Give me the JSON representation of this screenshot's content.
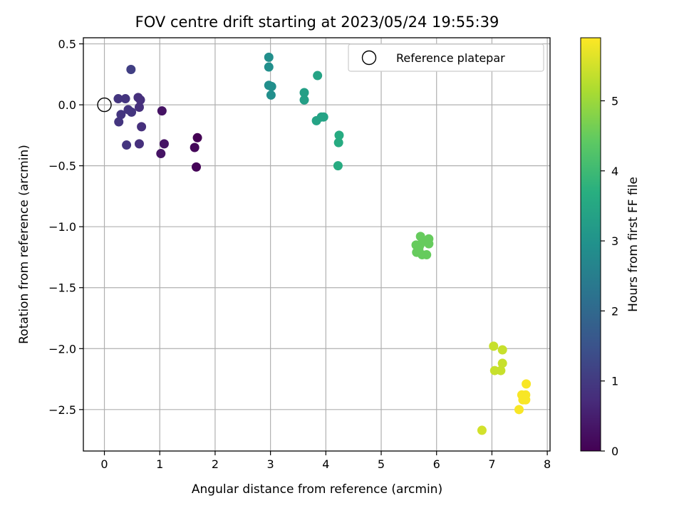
{
  "chart_data": {
    "type": "scatter",
    "title": "FOV centre drift starting at 2023/05/24 19:55:39",
    "xlabel": "Angular distance from reference (arcmin)",
    "ylabel": "Rotation from reference (arcmin)",
    "xlim": [
      -0.38,
      8.05
    ],
    "ylim": [
      -2.84,
      0.55
    ],
    "xticks": [
      0,
      1,
      2,
      3,
      4,
      5,
      6,
      7,
      8
    ],
    "xtick_labels": [
      "0",
      "1",
      "2",
      "3",
      "4",
      "5",
      "6",
      "7",
      "8"
    ],
    "yticks": [
      0.5,
      0.0,
      -0.5,
      -1.0,
      -1.5,
      -2.0,
      -2.5
    ],
    "ytick_labels": [
      "0.5",
      "0.0",
      "−0.5",
      "−1.0",
      "−1.5",
      "−2.0",
      "−2.5"
    ],
    "grid": true,
    "colormap": "viridis",
    "colorbar": {
      "label": "Hours from first FF file",
      "range": [
        0,
        5.9
      ],
      "ticks": [
        0,
        1,
        2,
        3,
        4,
        5
      ],
      "tick_labels": [
        "0",
        "1",
        "2",
        "3",
        "4",
        "5"
      ]
    },
    "legend": {
      "placement": "top-right",
      "entries": [
        {
          "label": "Reference platepar",
          "marker": "open-circle"
        }
      ]
    },
    "reference_point": {
      "x": 0.0,
      "y": 0.0
    },
    "points": [
      {
        "x": 1.68,
        "y": -0.27,
        "c": 0.0
      },
      {
        "x": 1.66,
        "y": -0.51,
        "c": 0.05
      },
      {
        "x": 1.63,
        "y": -0.35,
        "c": 0.1
      },
      {
        "x": 1.04,
        "y": -0.05,
        "c": 0.3
      },
      {
        "x": 1.08,
        "y": -0.32,
        "c": 0.3
      },
      {
        "x": 1.02,
        "y": -0.4,
        "c": 0.3
      },
      {
        "x": 0.67,
        "y": -0.18,
        "c": 0.8
      },
      {
        "x": 0.63,
        "y": -0.32,
        "c": 0.8
      },
      {
        "x": 0.65,
        "y": 0.04,
        "c": 0.8
      },
      {
        "x": 0.61,
        "y": 0.06,
        "c": 0.8
      },
      {
        "x": 0.63,
        "y": -0.02,
        "c": 0.8
      },
      {
        "x": 0.49,
        "y": -0.06,
        "c": 0.9
      },
      {
        "x": 0.43,
        "y": -0.04,
        "c": 0.9
      },
      {
        "x": 0.38,
        "y": 0.05,
        "c": 0.9
      },
      {
        "x": 0.25,
        "y": 0.05,
        "c": 0.9
      },
      {
        "x": 0.3,
        "y": -0.08,
        "c": 0.9
      },
      {
        "x": 0.26,
        "y": -0.14,
        "c": 0.9
      },
      {
        "x": 0.4,
        "y": -0.33,
        "c": 0.9
      },
      {
        "x": 0.48,
        "y": 0.29,
        "c": 1.1
      },
      {
        "x": 2.97,
        "y": 0.39,
        "c": 2.9
      },
      {
        "x": 2.97,
        "y": 0.31,
        "c": 2.9
      },
      {
        "x": 2.97,
        "y": 0.16,
        "c": 2.9
      },
      {
        "x": 3.02,
        "y": 0.15,
        "c": 2.9
      },
      {
        "x": 3.01,
        "y": 0.08,
        "c": 2.9
      },
      {
        "x": 3.61,
        "y": 0.1,
        "c": 3.3
      },
      {
        "x": 3.61,
        "y": 0.04,
        "c": 3.3
      },
      {
        "x": 3.85,
        "y": 0.24,
        "c": 3.4
      },
      {
        "x": 3.83,
        "y": -0.13,
        "c": 3.4
      },
      {
        "x": 3.92,
        "y": -0.1,
        "c": 3.4
      },
      {
        "x": 3.96,
        "y": -0.1,
        "c": 3.4
      },
      {
        "x": 4.24,
        "y": -0.25,
        "c": 3.6
      },
      {
        "x": 4.23,
        "y": -0.31,
        "c": 3.6
      },
      {
        "x": 4.22,
        "y": -0.5,
        "c": 3.6
      },
      {
        "x": 5.71,
        "y": -1.08,
        "c": 4.5
      },
      {
        "x": 5.63,
        "y": -1.15,
        "c": 4.5
      },
      {
        "x": 5.7,
        "y": -1.15,
        "c": 4.5
      },
      {
        "x": 5.75,
        "y": -1.12,
        "c": 4.5
      },
      {
        "x": 5.86,
        "y": -1.1,
        "c": 4.5
      },
      {
        "x": 5.86,
        "y": -1.14,
        "c": 4.5
      },
      {
        "x": 5.64,
        "y": -1.21,
        "c": 4.5
      },
      {
        "x": 5.74,
        "y": -1.23,
        "c": 4.5
      },
      {
        "x": 5.82,
        "y": -1.23,
        "c": 4.5
      },
      {
        "x": 5.68,
        "y": -1.18,
        "c": 4.5
      },
      {
        "x": 7.03,
        "y": -1.98,
        "c": 5.4
      },
      {
        "x": 7.19,
        "y": -2.01,
        "c": 5.4
      },
      {
        "x": 7.19,
        "y": -2.12,
        "c": 5.4
      },
      {
        "x": 7.05,
        "y": -2.18,
        "c": 5.4
      },
      {
        "x": 7.16,
        "y": -2.18,
        "c": 5.4
      },
      {
        "x": 6.82,
        "y": -2.67,
        "c": 5.5
      },
      {
        "x": 7.62,
        "y": -2.29,
        "c": 5.85
      },
      {
        "x": 7.54,
        "y": -2.38,
        "c": 5.85
      },
      {
        "x": 7.61,
        "y": -2.38,
        "c": 5.85
      },
      {
        "x": 7.56,
        "y": -2.42,
        "c": 5.85
      },
      {
        "x": 7.61,
        "y": -2.42,
        "c": 5.85
      },
      {
        "x": 7.49,
        "y": -2.5,
        "c": 5.85
      }
    ]
  }
}
